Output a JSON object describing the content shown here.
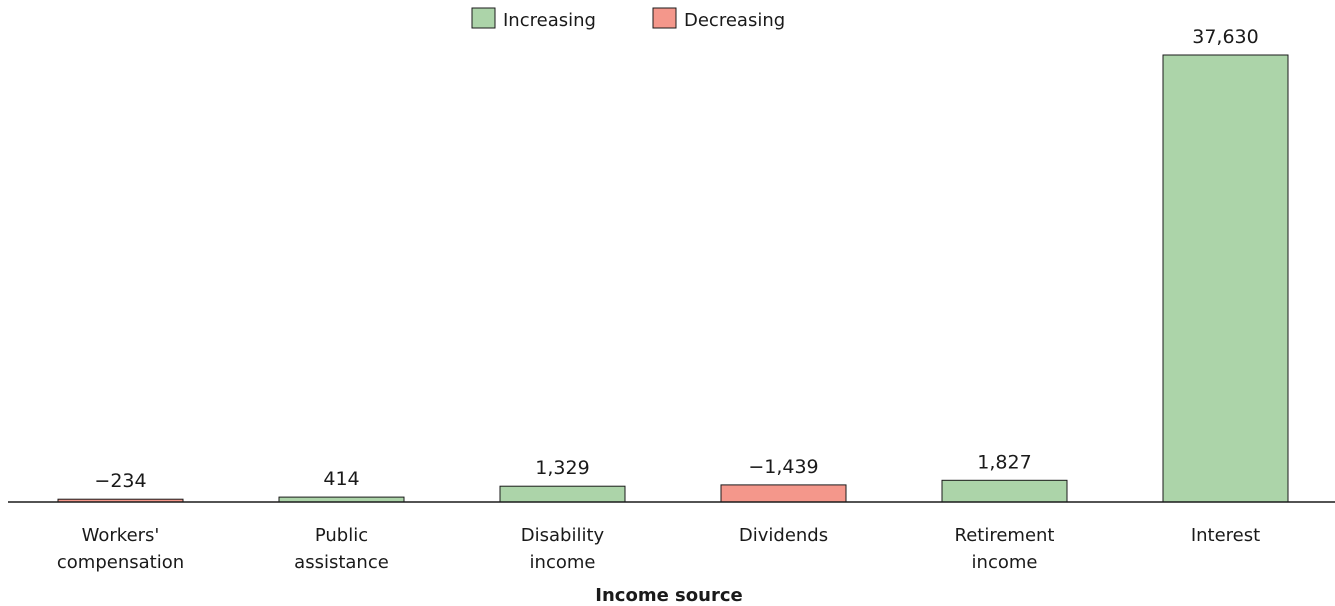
{
  "chart_data": {
    "type": "bar",
    "chart_style": "waterfall-like bars with bar height = absolute value; color indicates increase/decrease",
    "categories": [
      [
        "Workers'",
        "compensation"
      ],
      [
        "Public",
        "assistance"
      ],
      [
        "Disability",
        "income"
      ],
      [
        "Dividends"
      ],
      [
        "Retirement",
        "income"
      ],
      [
        "Interest"
      ]
    ],
    "values": [
      -234,
      414,
      1329,
      -1439,
      1827,
      37630
    ],
    "data_labels": [
      "−234",
      "414",
      "1,329",
      "−1,439",
      "1,827",
      "37,630"
    ],
    "xlabel": "Income source",
    "ylabel": "",
    "ylim": [
      0,
      37630
    ],
    "grid": false,
    "legend": {
      "position": "top-center",
      "entries": [
        {
          "label": "Increasing",
          "color": "#acd4a9"
        },
        {
          "label": "Decreasing",
          "color": "#f4978b"
        }
      ]
    },
    "colors": {
      "increasing": "#acd4a9",
      "decreasing": "#f4978b",
      "stroke": "#1a1a1a"
    }
  }
}
